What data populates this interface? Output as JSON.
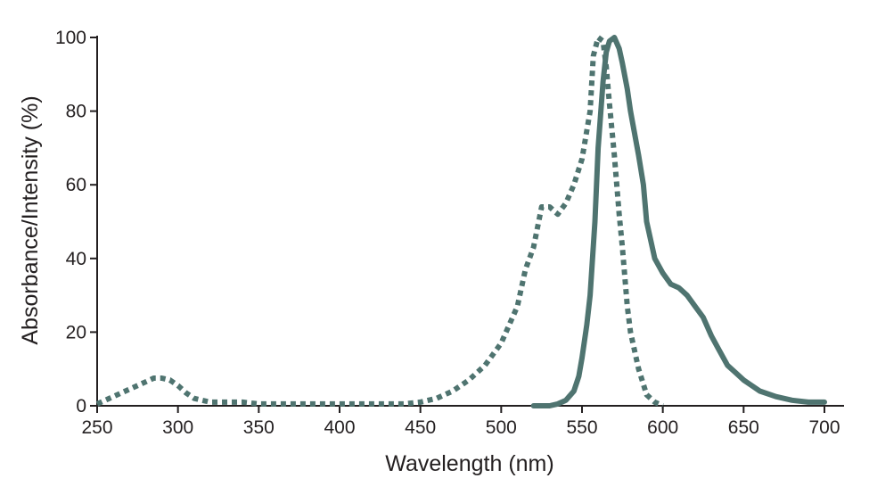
{
  "chart_data": {
    "type": "line",
    "title": "",
    "xlabel": "Wavelength (nm)",
    "ylabel": "Absorbance/Intensity (%)",
    "xlim": [
      250,
      700
    ],
    "ylim": [
      0,
      100
    ],
    "xticks": [
      250,
      300,
      350,
      400,
      450,
      500,
      550,
      600,
      650,
      700
    ],
    "yticks": [
      0,
      20,
      40,
      60,
      80,
      100
    ],
    "grid": false,
    "legend": "none",
    "series": [
      {
        "style": "dotted",
        "color": "#4f7470",
        "x": [
          250,
          260,
          270,
          280,
          285,
          290,
          295,
          300,
          305,
          310,
          320,
          330,
          340,
          350,
          400,
          440,
          450,
          460,
          470,
          480,
          490,
          500,
          505,
          510,
          515,
          520,
          525,
          530,
          535,
          540,
          545,
          550,
          555,
          557,
          560,
          563,
          565,
          567,
          570,
          573,
          575,
          578,
          580,
          585,
          590,
          595,
          600
        ],
        "y": [
          0.5,
          2.5,
          4.5,
          6.5,
          7.5,
          7.5,
          7,
          5.5,
          3.5,
          2,
          1,
          1,
          1,
          0.5,
          0.5,
          0.5,
          1,
          2,
          4,
          7,
          11,
          17,
          22,
          27,
          37,
          43,
          54,
          54,
          52,
          55,
          60,
          67,
          80,
          95,
          100,
          99,
          92,
          82,
          68,
          52,
          43,
          27,
          20,
          10,
          3,
          1,
          0
        ]
      },
      {
        "style": "solid",
        "color": "#4f7470",
        "x": [
          520,
          530,
          535,
          540,
          545,
          548,
          550,
          553,
          555,
          558,
          560,
          563,
          565,
          567,
          570,
          573,
          575,
          578,
          580,
          585,
          588,
          590,
          595,
          600,
          605,
          610,
          615,
          620,
          625,
          630,
          635,
          640,
          645,
          650,
          655,
          660,
          670,
          680,
          690,
          700
        ],
        "y": [
          0,
          0,
          0.5,
          1.5,
          4,
          8,
          13,
          22,
          30,
          50,
          70,
          88,
          96,
          99,
          100,
          97,
          93,
          86,
          80,
          68,
          60,
          50,
          40,
          36,
          33,
          32,
          30,
          27,
          24,
          19,
          15,
          11,
          9,
          7,
          5.5,
          4,
          2.5,
          1.5,
          1,
          1
        ]
      }
    ]
  }
}
